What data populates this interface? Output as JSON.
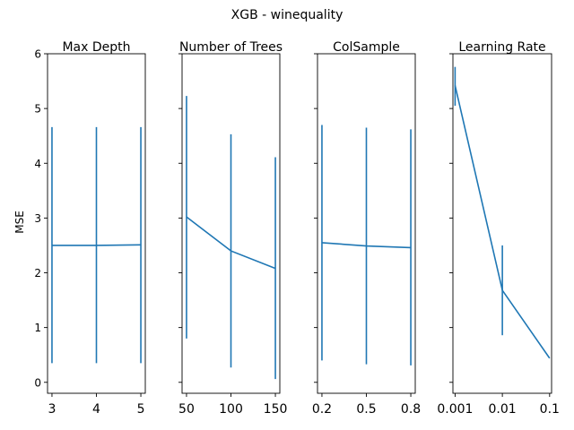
{
  "colors": {
    "series": "#1f77b4"
  },
  "chart_data": {
    "type": "line",
    "title": "XGB - winequality",
    "ylabel": "MSE",
    "ylim": [
      -0.2,
      6.0
    ],
    "yticks": [
      0,
      1,
      2,
      3,
      4,
      5,
      6
    ],
    "ytick_labels": [
      "0",
      "1",
      "2",
      "3",
      "4",
      "5",
      "6"
    ],
    "shared_y": true,
    "panels": [
      {
        "title": "Max Depth",
        "x": [
          3,
          4,
          5
        ],
        "xticks": [
          3,
          4,
          5
        ],
        "xtick_labels": [
          "3",
          "4",
          "5"
        ],
        "xlim": [
          2.9,
          5.1
        ],
        "x_scale": "linear",
        "y": [
          2.5,
          2.5,
          2.51
        ],
        "yerr_low": [
          0.35,
          0.35,
          0.35
        ],
        "yerr_high": [
          4.66,
          4.66,
          4.66
        ]
      },
      {
        "title": "Number of Trees",
        "x": [
          50,
          100,
          150
        ],
        "xticks": [
          50,
          100,
          150
        ],
        "xtick_labels": [
          "50",
          "100",
          "150"
        ],
        "xlim": [
          45,
          155
        ],
        "x_scale": "linear",
        "y": [
          3.02,
          2.4,
          2.08
        ],
        "yerr_low": [
          0.8,
          0.27,
          0.06
        ],
        "yerr_high": [
          5.23,
          4.53,
          4.11
        ]
      },
      {
        "title": "ColSample",
        "x": [
          0.2,
          0.5,
          0.8
        ],
        "xticks": [
          0.2,
          0.5,
          0.8
        ],
        "xtick_labels": [
          "0.2",
          "0.5",
          "0.8"
        ],
        "xlim": [
          0.17,
          0.83
        ],
        "x_scale": "linear",
        "y": [
          2.55,
          2.49,
          2.46
        ],
        "yerr_low": [
          0.4,
          0.33,
          0.31
        ],
        "yerr_high": [
          4.7,
          4.65,
          4.62
        ]
      },
      {
        "title": "Learning Rate",
        "x": [
          0.001,
          0.01,
          0.1
        ],
        "xticks": [
          0.001,
          0.01,
          0.1
        ],
        "xtick_labels": [
          "0.001",
          "0.01",
          "0.1"
        ],
        "xlim": [
          0.0009,
          0.11
        ],
        "x_scale": "log",
        "y": [
          5.42,
          1.68,
          0.44
        ],
        "yerr_low": [
          5.05,
          0.86,
          0.44
        ],
        "yerr_high": [
          5.76,
          2.5,
          0.44
        ]
      }
    ]
  }
}
